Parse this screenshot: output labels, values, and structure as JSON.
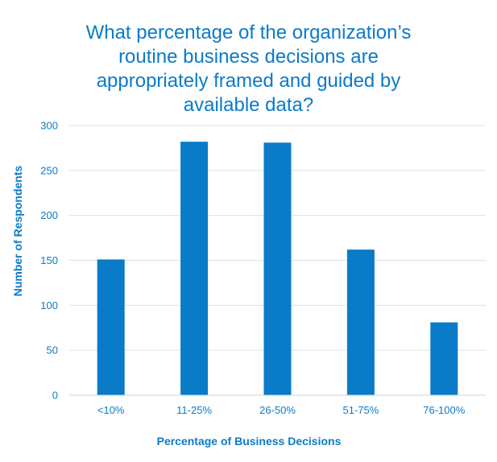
{
  "chart_data": {
    "type": "bar",
    "title": "What percentage of the organization’s\nroutine business decisions are\nappropriately framed and guided by\navailable data?",
    "xlabel": "Percentage of Business Decisions",
    "ylabel": "Number of Respondents",
    "categories": [
      "<10%",
      "11-25%",
      "26-50%",
      "51-75%",
      "76-100%"
    ],
    "values": [
      151,
      282,
      281,
      162,
      81
    ],
    "ylim": [
      0,
      300
    ],
    "yticks": [
      0,
      50,
      100,
      150,
      200,
      250,
      300
    ],
    "grid": true,
    "legend": "none",
    "colors": {
      "bar": "#0a7bc8",
      "text": "#0a7bc8",
      "grid": "#d9e3ea",
      "axis": "#c9d6de"
    }
  }
}
